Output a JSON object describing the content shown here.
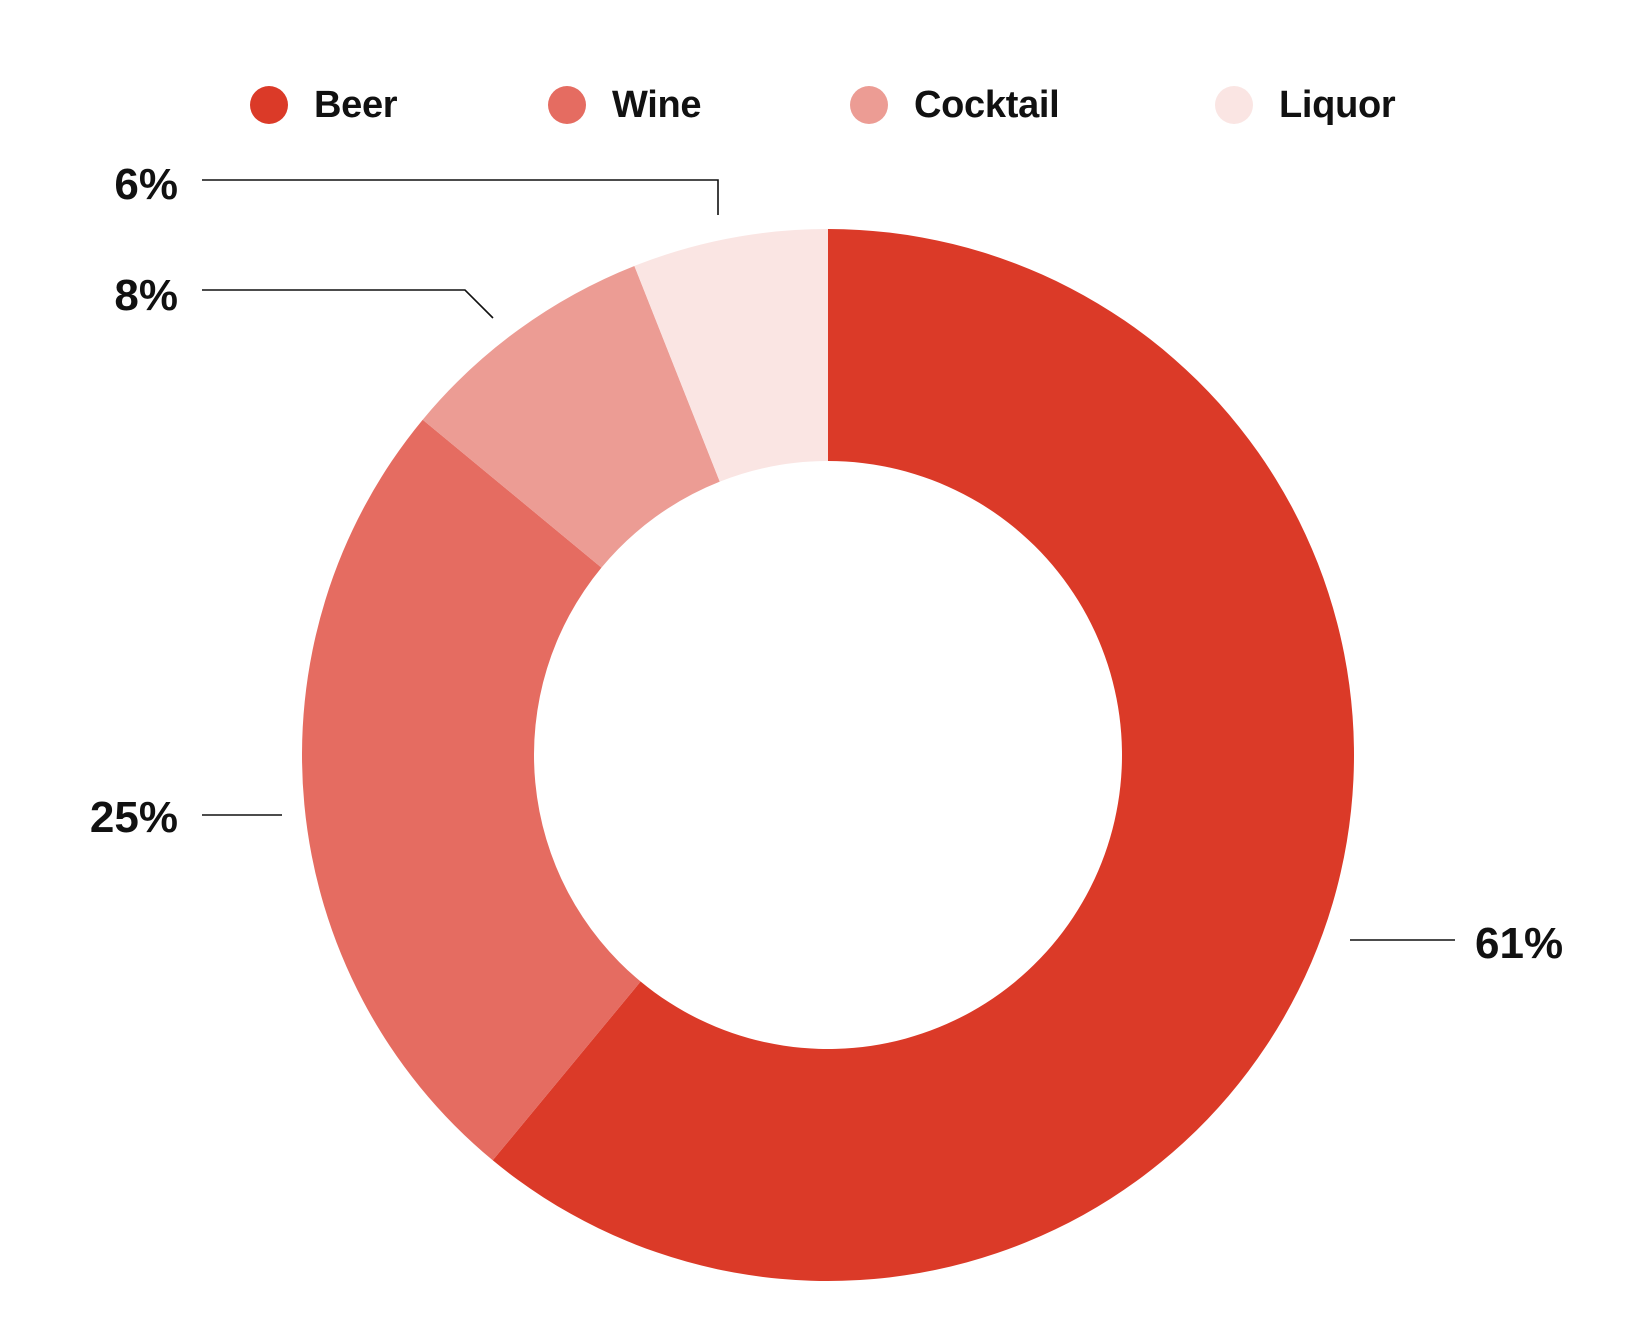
{
  "chart_data": {
    "type": "pie",
    "variant": "donut",
    "categories": [
      "Beer",
      "Wine",
      "Cocktail",
      "Liquor"
    ],
    "values": [
      61,
      25,
      8,
      6
    ],
    "value_labels": [
      "61%",
      "25%",
      "8%",
      "6%"
    ],
    "colors": [
      "#db3a28",
      "#e56c61",
      "#ec9c94",
      "#fae5e3"
    ],
    "legend_position": "top",
    "title": ""
  },
  "legend": {
    "items": [
      {
        "label": "Beer",
        "color": "#db3a28"
      },
      {
        "label": "Wine",
        "color": "#e56c61"
      },
      {
        "label": "Cocktail",
        "color": "#ec9c94"
      },
      {
        "label": "Liquor",
        "color": "#fae5e3"
      }
    ]
  }
}
